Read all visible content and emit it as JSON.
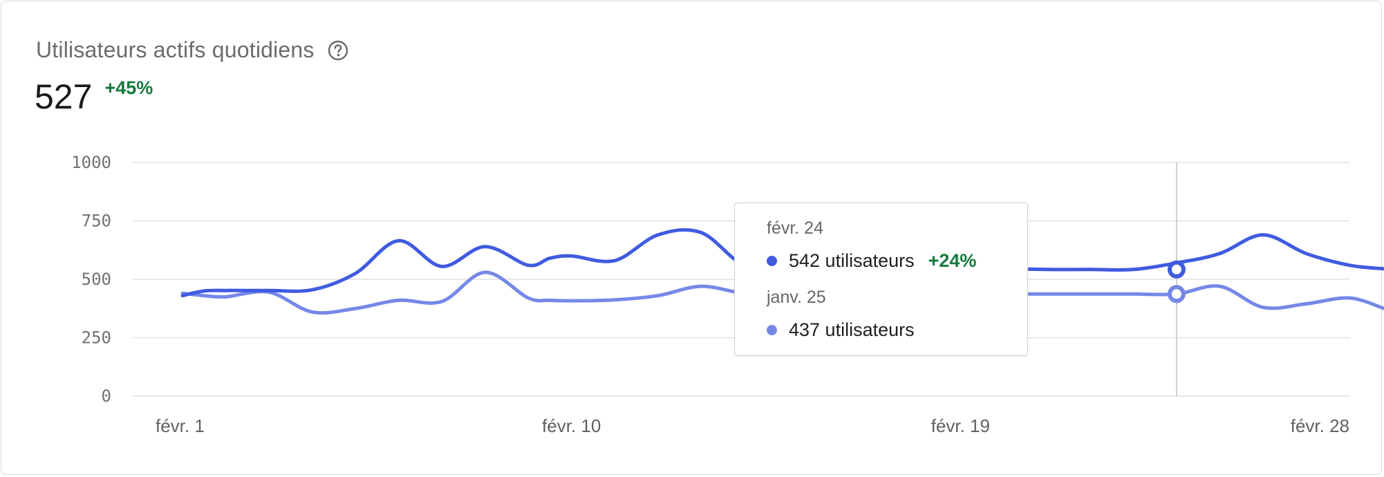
{
  "card": {
    "title": "Utilisateurs actifs quotidiens",
    "value": "527",
    "delta": "+45%"
  },
  "tooltip": {
    "current_date": "févr. 24",
    "current_value": "542 utilisateurs",
    "current_delta": "+24%",
    "previous_date": "janv. 25",
    "previous_value": "437 utilisateurs"
  },
  "colors": {
    "current": "#3f5be0",
    "previous": "#7588e8",
    "delta_positive": "#157a3c",
    "grid": "#e1e1e1"
  },
  "icons": {
    "help": "question-circle-icon"
  },
  "chart_data": {
    "type": "line",
    "title": "Utilisateurs actifs quotidiens",
    "xlabel": "",
    "ylabel": "",
    "ylim": [
      0,
      1000
    ],
    "yticks": [
      0,
      250,
      500,
      750,
      1000
    ],
    "ytick_labels": [
      "0",
      "250",
      "500",
      "750",
      "1000"
    ],
    "xticks": [
      {
        "day": 1,
        "label": "févr. 1"
      },
      {
        "day": 10,
        "label": "févr. 10"
      },
      {
        "day": 19,
        "label": "févr. 19"
      },
      {
        "day": 28,
        "label": "févr. 28"
      }
    ],
    "x": [
      1,
      1.5,
      2,
      3,
      4,
      5,
      6,
      7,
      8,
      9,
      9.5,
      10,
      11,
      12,
      13,
      14,
      15,
      16,
      17,
      18,
      19,
      20,
      21,
      22,
      23,
      24,
      25,
      26,
      27,
      28,
      28.8
    ],
    "series": [
      {
        "values": [
          430,
          450,
          452,
          452,
          455,
          525,
          665,
          555,
          640,
          560,
          590,
          600,
          580,
          690,
          700,
          560,
          560,
          560,
          560,
          555,
          548,
          545,
          542,
          542,
          542,
          570,
          610,
          690,
          610,
          560,
          545
        ]
      },
      {
        "values": [
          440,
          430,
          425,
          445,
          360,
          375,
          410,
          405,
          530,
          420,
          410,
          408,
          412,
          430,
          470,
          440,
          440,
          440,
          440,
          440,
          438,
          437,
          437,
          437,
          437,
          437,
          470,
          380,
          395,
          420,
          375
        ]
      }
    ],
    "highlight": {
      "day": 24,
      "current_value": 542,
      "previous_value": 437
    },
    "grid": true,
    "legend": "none"
  }
}
